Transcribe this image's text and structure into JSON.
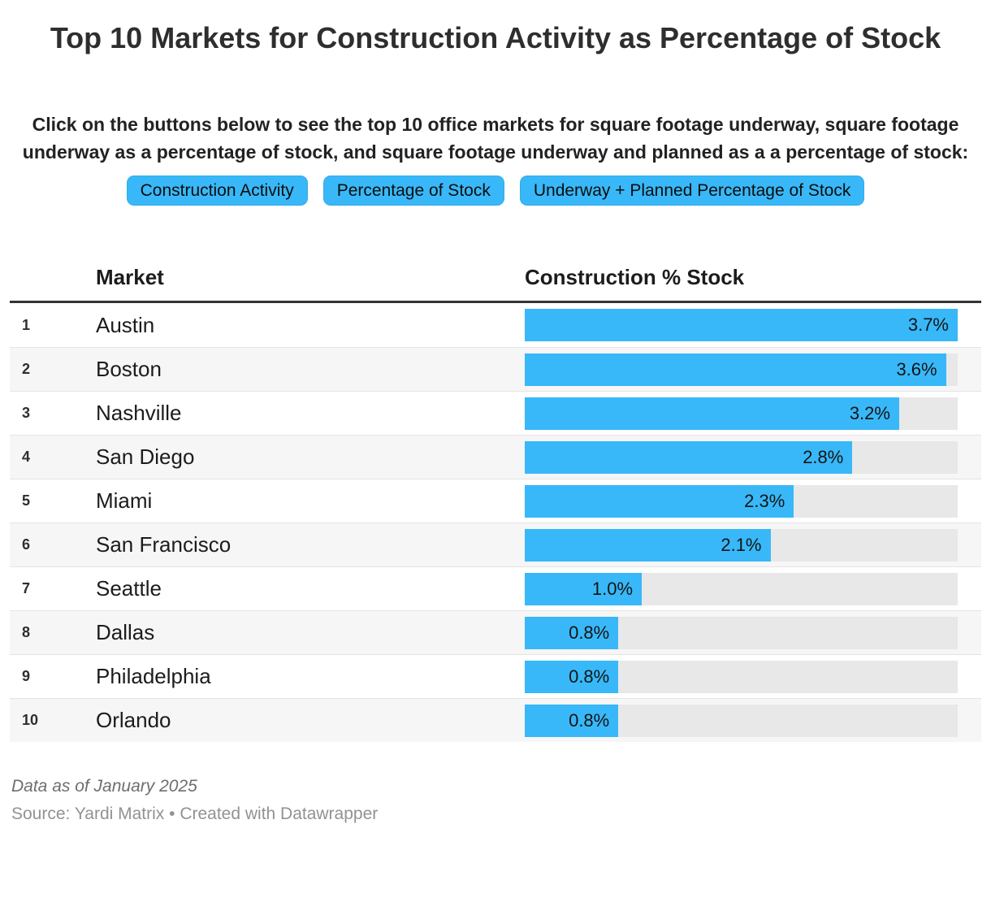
{
  "page": {
    "title": "Top 10 Markets for Construction Activity as Percentage of Stock",
    "intro": "Click on the buttons below to see the top 10 office markets for square footage underway, square footage underway as a percentage of stock, and square footage underway and planned as a a percentage of stock:"
  },
  "buttons": [
    {
      "label": "Construction Activity"
    },
    {
      "label": "Percentage of Stock"
    },
    {
      "label": "Underway + Planned Percentage of Stock"
    }
  ],
  "table": {
    "header_market": "Market",
    "header_value": "Construction % Stock"
  },
  "chart_data": {
    "type": "bar",
    "orientation": "horizontal",
    "title": "Top 10 Markets for Construction Activity as Percentage of Stock",
    "category_column": "Market",
    "value_column": "Construction % Stock",
    "ranks": [
      "1",
      "2",
      "3",
      "4",
      "5",
      "6",
      "7",
      "8",
      "9",
      "10"
    ],
    "categories": [
      "Austin",
      "Boston",
      "Nashville",
      "San Diego",
      "Miami",
      "San Francisco",
      "Seattle",
      "Dallas",
      "Philadelphia",
      "Orlando"
    ],
    "values": [
      3.7,
      3.6,
      3.2,
      2.8,
      2.3,
      2.1,
      1.0,
      0.8,
      0.8,
      0.8
    ],
    "value_labels": [
      "3.7%",
      "3.6%",
      "3.2%",
      "2.8%",
      "2.3%",
      "2.1%",
      "1.0%",
      "0.8%",
      "0.8%",
      "0.8%"
    ],
    "xlim": [
      0,
      3.7
    ],
    "grid": false,
    "legend": false
  },
  "footer": {
    "note": "Data as of January 2025",
    "source": "Source: Yardi Matrix • Created with Datawrapper"
  },
  "colors": {
    "accent": "#38b8f8",
    "bar_track": "#e8e8e8",
    "row_alt": "#f6f6f6",
    "header_rule": "#333333"
  }
}
